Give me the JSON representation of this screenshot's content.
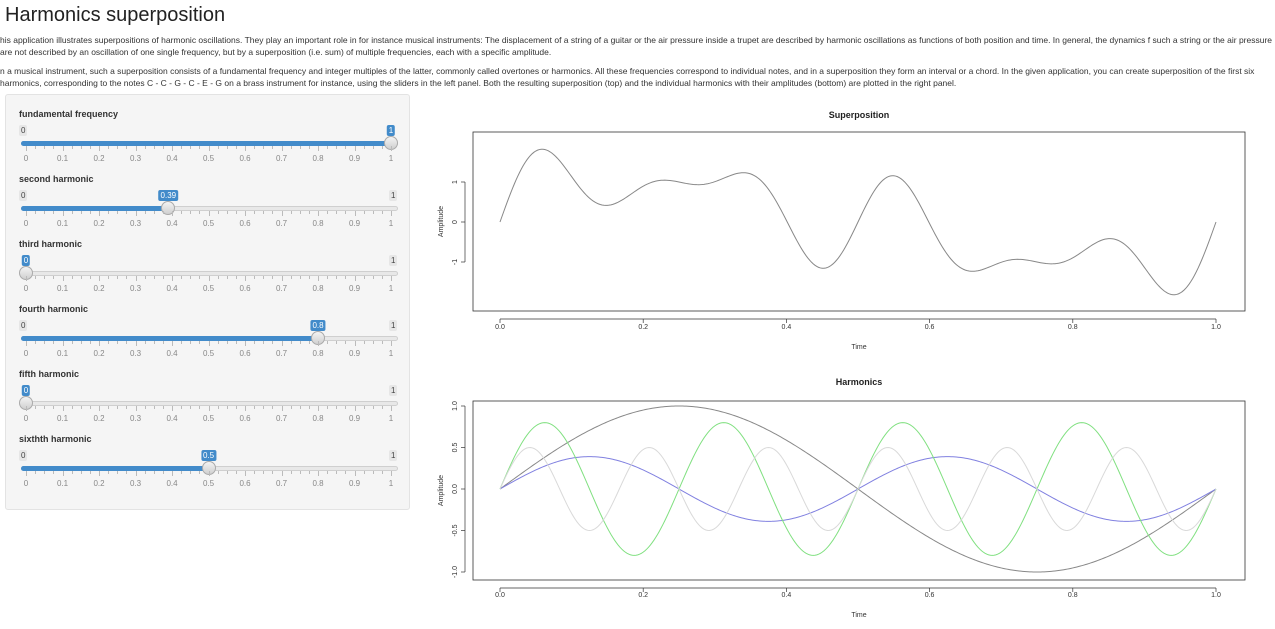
{
  "page": {
    "title": "Harmonics superposition",
    "para1": "his application illustrates superpositions of harmonic oscillations. They play an important role in for instance musical instruments: The displacement of a string of a guitar or the air pressure inside a trupet are described by harmonic oscillations as functions of both position and time. In general, the dynamics f such a string or the air pressure are not described by an oscillation of one single frequency, but by a superposition (i.e. sum) of multiple frequencies, each with a specific amplitude.",
    "para2": "n a musical instrument, such a superposition consists of a fundamental frequency and integer multiples of the latter, commonly called overtones or harmonics. All these frequencies correspond to individual notes, and in a superposition they form an interval or a chord. In the given application, you can create superposition of the first six harmonics, corresponding to the notes C - C - G - C - E - G on a brass instrument for instance, using the sliders in the left panel. Both the resulting superposition (top) and the individual harmonics with their amplitudes (bottom) are plotted in the right panel."
  },
  "sliders": [
    {
      "label": "fundamental frequency",
      "min": "0",
      "max": "1",
      "value": 1,
      "value_label": "1"
    },
    {
      "label": "second harmonic",
      "min": "0",
      "max": "1",
      "value": 0.39,
      "value_label": "0.39"
    },
    {
      "label": "third harmonic",
      "min": "0",
      "max": "1",
      "value": 0,
      "value_label": "0"
    },
    {
      "label": "fourth harmonic",
      "min": "0",
      "max": "1",
      "value": 0.8,
      "value_label": "0.8"
    },
    {
      "label": "fifth harmonic",
      "min": "0",
      "max": "1",
      "value": 0,
      "value_label": "0"
    },
    {
      "label": "sixthth harmonic",
      "min": "0",
      "max": "1",
      "value": 0.5,
      "value_label": "0.5"
    }
  ],
  "tick_labels": [
    "0",
    "0.1",
    "0.2",
    "0.3",
    "0.4",
    "0.5",
    "0.6",
    "0.7",
    "0.8",
    "0.9",
    "1"
  ],
  "chart_data": [
    {
      "type": "line",
      "title": "Superposition",
      "xlabel": "Time",
      "ylabel": "Amplitude",
      "xlim": [
        0,
        1
      ],
      "ylim": [
        -1.9,
        1.9
      ],
      "xticks": [
        "0.0",
        "0.2",
        "0.4",
        "0.6",
        "0.8",
        "1.0"
      ],
      "yticks": [
        "-1",
        "0",
        "1"
      ],
      "series": [
        {
          "amplitudes": [
            1,
            0.39,
            0,
            0.8,
            0,
            0.5
          ],
          "color": "#888888"
        }
      ]
    },
    {
      "type": "line",
      "title": "Harmonics",
      "xlabel": "Time",
      "ylabel": "Amplitude",
      "xlim": [
        0,
        1
      ],
      "ylim": [
        -1.0,
        1.0
      ],
      "xticks": [
        "0.0",
        "0.2",
        "0.4",
        "0.6",
        "0.8",
        "1.0"
      ],
      "yticks": [
        "-1.0",
        "-0.5",
        "0.0",
        "0.5",
        "1.0"
      ],
      "series": [
        {
          "harmonic": 1,
          "amplitude": 1,
          "color": "#888888"
        },
        {
          "harmonic": 2,
          "amplitude": 0.39,
          "color": "#8080e0"
        },
        {
          "harmonic": 4,
          "amplitude": 0.8,
          "color": "#80e080"
        },
        {
          "harmonic": 6,
          "amplitude": 0.5,
          "color": "#d9d9d9"
        }
      ]
    }
  ]
}
